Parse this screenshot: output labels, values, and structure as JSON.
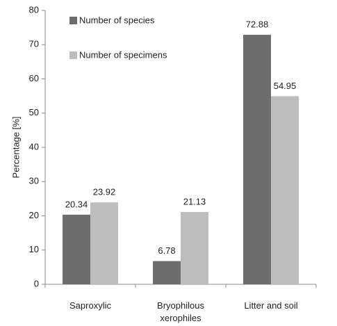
{
  "chart_data": {
    "type": "bar",
    "y_label": "Percentage [%]",
    "categories": [
      "Saproxylic",
      "Bryophilous xerophiles",
      "Litter and soil"
    ],
    "series": [
      {
        "name": "Number of species",
        "color": "#6d6d6d",
        "values": [
          20.34,
          6.78,
          72.88
        ]
      },
      {
        "name": "Number of specimens",
        "color": "#bdbdbd",
        "values": [
          23.92,
          21.13,
          54.95
        ]
      }
    ],
    "ylim": [
      0,
      80
    ],
    "yticks": [
      0,
      10,
      20,
      30,
      40,
      50,
      60,
      70,
      80
    ],
    "grid": false,
    "legend": "top-left"
  }
}
